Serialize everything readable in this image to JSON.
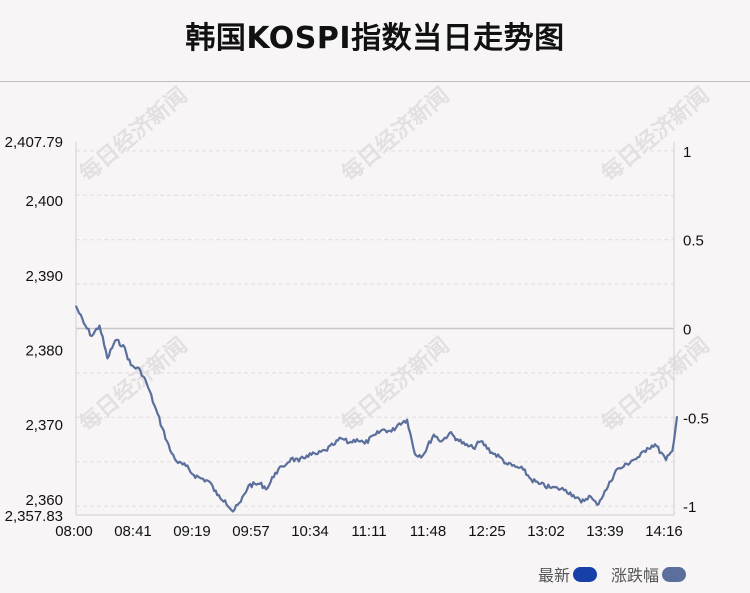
{
  "title": "韩国KOSPI指数当日走势图",
  "watermark": "每日经济新闻",
  "legend": {
    "latest_label": "最新",
    "latest_color": "#1740a8",
    "change_label": "涨跌幅",
    "change_color": "#5a6f9b"
  },
  "chart_data": {
    "type": "line",
    "title": "韩国KOSPI指数当日走势图",
    "xlabel": "",
    "ylabel": "",
    "x_tick_labels": [
      "08:00",
      "08:41",
      "09:19",
      "09:57",
      "10:34",
      "11:11",
      "11:48",
      "12:25",
      "13:02",
      "13:39",
      "14:16"
    ],
    "y_left_tick_labels": [
      "2,407.79",
      "2,400",
      "2,390",
      "2,380",
      "2,370",
      "2,360",
      "2,357.83"
    ],
    "y_left_tick_values": [
      2407.79,
      2400,
      2390,
      2380,
      2370,
      2360,
      2357.83
    ],
    "y_right_tick_labels": [
      "1",
      "0.5",
      "0",
      "-0.5",
      "-1"
    ],
    "y_right_tick_values": [
      1,
      0.5,
      0,
      -0.5,
      -1
    ],
    "ylim": [
      2357.83,
      2407.79
    ],
    "y2lim": [
      -1.05,
      1.05
    ],
    "reference_level": 2384.2,
    "grid": true,
    "legend_position": "bottom-right",
    "line_color": "#5a6f9b",
    "series": [
      {
        "name": "最新",
        "x": [
          "08:00",
          "08:05",
          "08:10",
          "08:15",
          "08:20",
          "08:25",
          "08:30",
          "08:35",
          "08:41",
          "08:45",
          "08:50",
          "08:55",
          "09:00",
          "09:05",
          "09:10",
          "09:15",
          "09:19",
          "09:25",
          "09:30",
          "09:35",
          "09:40",
          "09:45",
          "09:50",
          "09:57",
          "10:02",
          "10:07",
          "10:12",
          "10:17",
          "10:22",
          "10:27",
          "10:34",
          "10:39",
          "10:44",
          "10:49",
          "10:54",
          "10:59",
          "11:04",
          "11:11",
          "11:16",
          "11:21",
          "11:26",
          "11:31",
          "11:36",
          "11:41",
          "11:48",
          "11:53",
          "11:58",
          "12:03",
          "12:08",
          "12:13",
          "12:18",
          "12:25",
          "12:30",
          "12:35",
          "12:40",
          "12:45",
          "12:50",
          "12:55",
          "13:02",
          "13:07",
          "13:12",
          "13:17",
          "13:22",
          "13:27",
          "13:32",
          "13:39",
          "13:44",
          "13:49",
          "13:54",
          "13:59",
          "14:04",
          "14:09",
          "14:16",
          "14:20",
          "14:23"
        ],
        "values": [
          2385.8,
          2383.5,
          2381.8,
          2383.2,
          2378.8,
          2381.2,
          2380.6,
          2377.9,
          2377.2,
          2375.5,
          2372.5,
          2369.5,
          2366.5,
          2364.8,
          2364.4,
          2363.2,
          2362.8,
          2362.3,
          2360.5,
          2359.8,
          2358.3,
          2359.6,
          2361.8,
          2362.0,
          2361.4,
          2363.5,
          2364.3,
          2365.4,
          2365.0,
          2365.8,
          2366.0,
          2366.5,
          2367.2,
          2368.1,
          2367.5,
          2368.0,
          2367.4,
          2368.6,
          2369.3,
          2369.0,
          2370.1,
          2370.6,
          2366.0,
          2365.8,
          2368.6,
          2367.7,
          2368.8,
          2368.0,
          2367.2,
          2366.8,
          2367.7,
          2366.2,
          2365.6,
          2364.6,
          2364.3,
          2363.9,
          2362.6,
          2362.0,
          2361.5,
          2361.4,
          2361.2,
          2360.5,
          2359.5,
          2360.4,
          2359.2,
          2361.6,
          2363.8,
          2364.3,
          2365.1,
          2365.6,
          2366.8,
          2367.3,
          2365.2,
          2366.4,
          2371.0
        ]
      }
    ]
  }
}
